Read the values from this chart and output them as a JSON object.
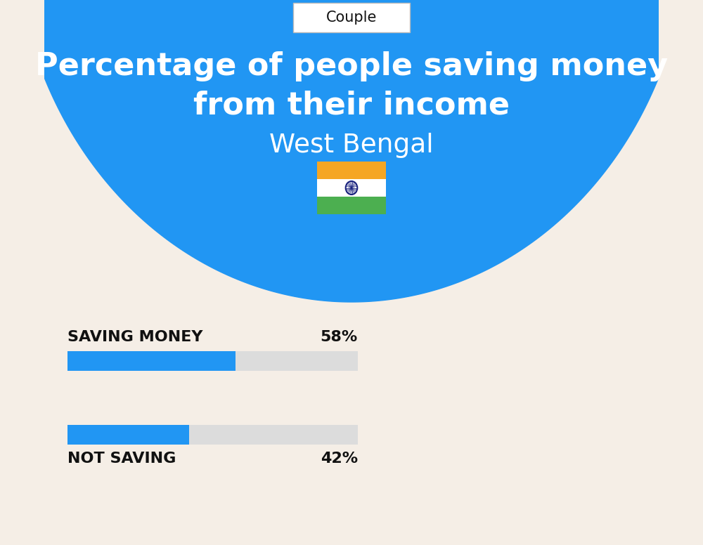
{
  "title_line1": "Percentage of people saving money",
  "title_line2": "from their income",
  "subtitle": "West Bengal",
  "tab_label": "Couple",
  "saving_label": "SAVING MONEY",
  "saving_value": 58,
  "saving_pct_text": "58%",
  "not_saving_label": "NOT SAVING",
  "not_saving_value": 42,
  "not_saving_pct_text": "42%",
  "bar_color": "#2196F3",
  "bar_bg_color": "#DCDCDC",
  "bg_color_blue": "#2196F3",
  "bg_color_cream": "#F5EEE6",
  "title_color": "#FFFFFF",
  "subtitle_color": "#FFFFFF",
  "tab_color": "#111111",
  "label_color": "#111111",
  "flag_orange": "#F5A623",
  "flag_white": "#FFFFFF",
  "flag_green": "#4CAF50",
  "flag_wheel": "#1A237E",
  "figure_width": 10.0,
  "figure_height": 7.76
}
